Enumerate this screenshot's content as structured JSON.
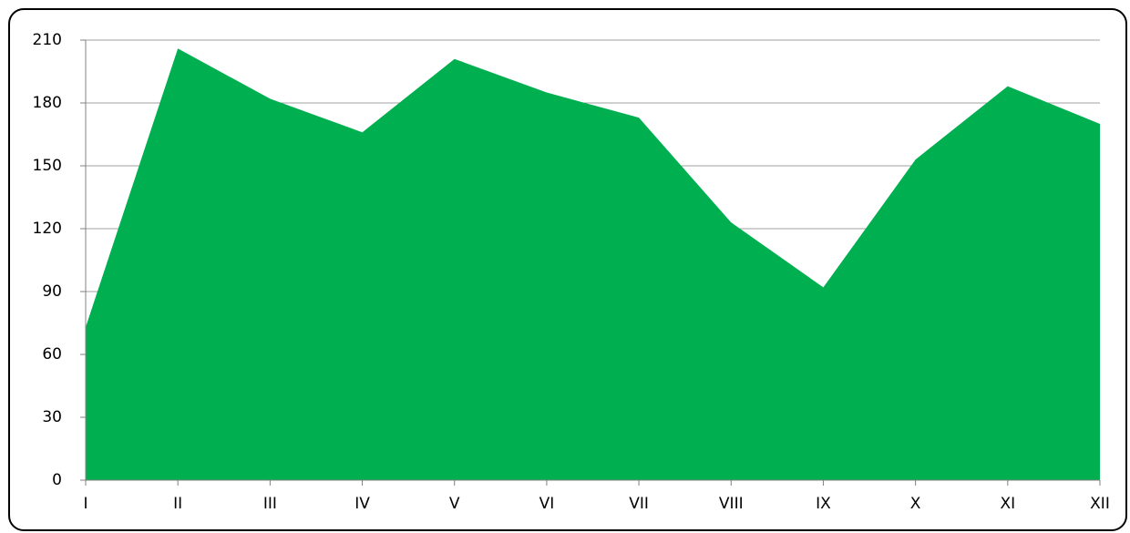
{
  "chart_data": {
    "type": "area",
    "categories": [
      "I",
      "II",
      "III",
      "IV",
      "V",
      "VI",
      "VII",
      "VIII",
      "IX",
      "X",
      "XI",
      "XII"
    ],
    "values": [
      73,
      206,
      182,
      166,
      201,
      185,
      173,
      123,
      92,
      153,
      188,
      170
    ],
    "color": "#00b050",
    "ylim": [
      0,
      210
    ],
    "yticks": [
      0,
      30,
      60,
      90,
      120,
      150,
      180,
      210
    ],
    "grid": true
  }
}
